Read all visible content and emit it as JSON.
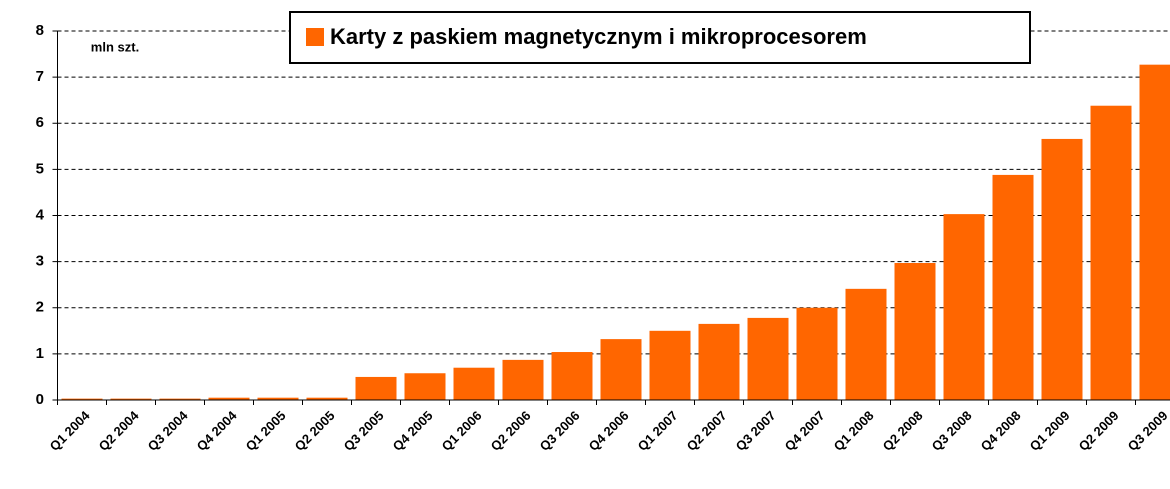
{
  "chart_data": {
    "type": "bar",
    "unit_label": "mln szt.",
    "categories": [
      "Q1 2004",
      "Q2 2004",
      "Q3 2004",
      "Q4 2004",
      "Q1 2005",
      "Q2 2005",
      "Q3 2005",
      "Q4 2005",
      "Q1 2006",
      "Q2 2006",
      "Q3 2006",
      "Q4 2006",
      "Q1 2007",
      "Q2 2007",
      "Q3 2007",
      "Q4 2007",
      "Q1 2008",
      "Q2 2008",
      "Q3 2008",
      "Q4 2008",
      "Q1 2009",
      "Q2 2009",
      "Q3 2009"
    ],
    "series": [
      {
        "name": "Karty z paskiem magnetycznym i mikroprocesorem",
        "color": "#ff6600",
        "values": [
          0.03,
          0.03,
          0.03,
          0.05,
          0.05,
          0.05,
          0.5,
          0.58,
          0.7,
          0.87,
          1.04,
          1.32,
          1.5,
          1.65,
          1.78,
          2.0,
          2.41,
          2.97,
          4.03,
          4.88,
          5.66,
          6.38,
          7.27
        ]
      }
    ],
    "ylim": [
      0,
      8
    ],
    "yticks": [
      0,
      1,
      2,
      3,
      4,
      5,
      6,
      7,
      8
    ],
    "grid": true,
    "legend": "top"
  }
}
